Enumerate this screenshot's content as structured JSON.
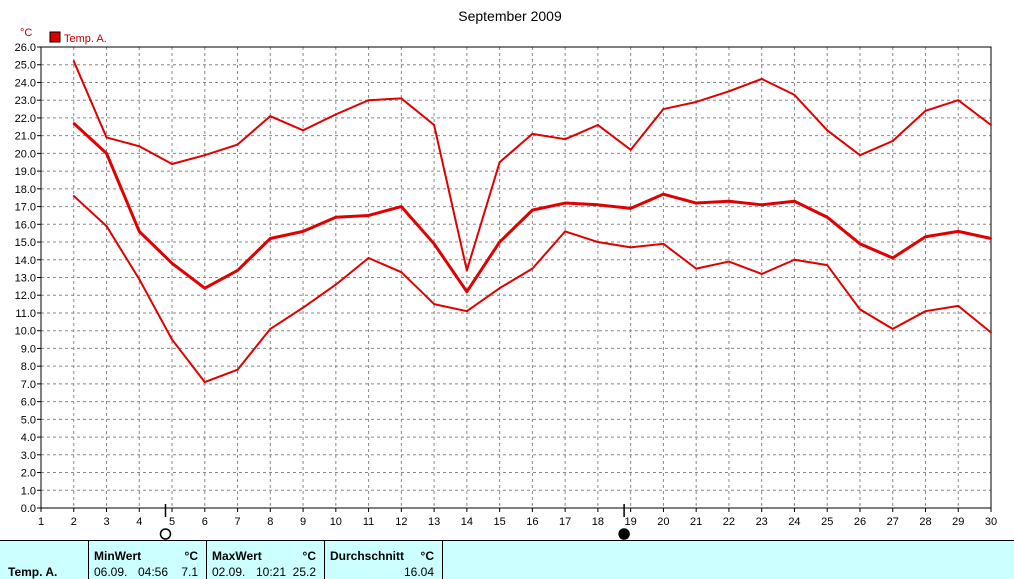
{
  "chart_data": {
    "type": "line",
    "title": "September 2009",
    "ylabel": "°C",
    "xlabel": "",
    "legend": {
      "label": "Temp. A.",
      "color": "#e00000",
      "placement": "top-left"
    },
    "x": [
      2,
      3,
      4,
      5,
      6,
      7,
      8,
      9,
      10,
      11,
      12,
      13,
      14,
      15,
      16,
      17,
      18,
      19,
      20,
      21,
      22,
      23,
      24,
      25,
      26,
      27,
      28,
      29,
      30
    ],
    "x_ticks": [
      1,
      2,
      3,
      4,
      5,
      6,
      7,
      8,
      9,
      10,
      11,
      12,
      13,
      14,
      15,
      16,
      17,
      18,
      19,
      20,
      21,
      22,
      23,
      24,
      25,
      26,
      27,
      28,
      29,
      30
    ],
    "xlim": [
      1,
      30
    ],
    "ylim": [
      0,
      26
    ],
    "y_tick_step": 1,
    "grid": true,
    "series": [
      {
        "role": "max",
        "values": [
          25.2,
          20.9,
          20.4,
          19.4,
          19.9,
          20.5,
          22.1,
          21.3,
          22.2,
          23.0,
          23.1,
          21.6,
          13.4,
          19.5,
          21.1,
          20.8,
          21.6,
          20.2,
          22.5,
          22.9,
          23.5,
          24.2,
          23.3,
          21.3,
          19.9,
          20.7,
          22.4,
          23.0,
          21.6
        ]
      },
      {
        "role": "avg",
        "values": [
          21.7,
          20.0,
          15.6,
          13.8,
          12.4,
          13.4,
          15.2,
          15.6,
          16.4,
          16.5,
          17.0,
          14.9,
          12.2,
          15.0,
          16.8,
          17.2,
          17.1,
          16.9,
          17.7,
          17.2,
          17.3,
          17.1,
          17.3,
          16.4,
          14.9,
          14.1,
          15.3,
          15.6,
          15.2
        ]
      },
      {
        "role": "min",
        "values": [
          17.6,
          15.9,
          12.9,
          9.5,
          7.1,
          7.8,
          10.1,
          11.3,
          12.6,
          14.1,
          13.3,
          11.5,
          11.1,
          12.4,
          13.5,
          15.6,
          15.0,
          14.7,
          14.9,
          13.5,
          13.9,
          13.2,
          14.0,
          13.7,
          11.2,
          10.1,
          11.1,
          11.4,
          9.9
        ]
      }
    ],
    "moon_phases": [
      {
        "day": 4.8,
        "phase": "full-moon-icon"
      },
      {
        "day": 18.8,
        "phase": "new-moon-icon"
      }
    ]
  },
  "stats": {
    "series_name": "Temp. A.",
    "min": {
      "header": "MinWert",
      "unit": "°C",
      "date": "06.09.",
      "time": "04:56",
      "value": "7.1"
    },
    "max": {
      "header": "MaxWert",
      "unit": "°C",
      "date": "02.09.",
      "time": "10:21",
      "value": "25.2"
    },
    "avg": {
      "header": "Durchschnitt",
      "unit": "°C",
      "value": "16.04"
    }
  }
}
